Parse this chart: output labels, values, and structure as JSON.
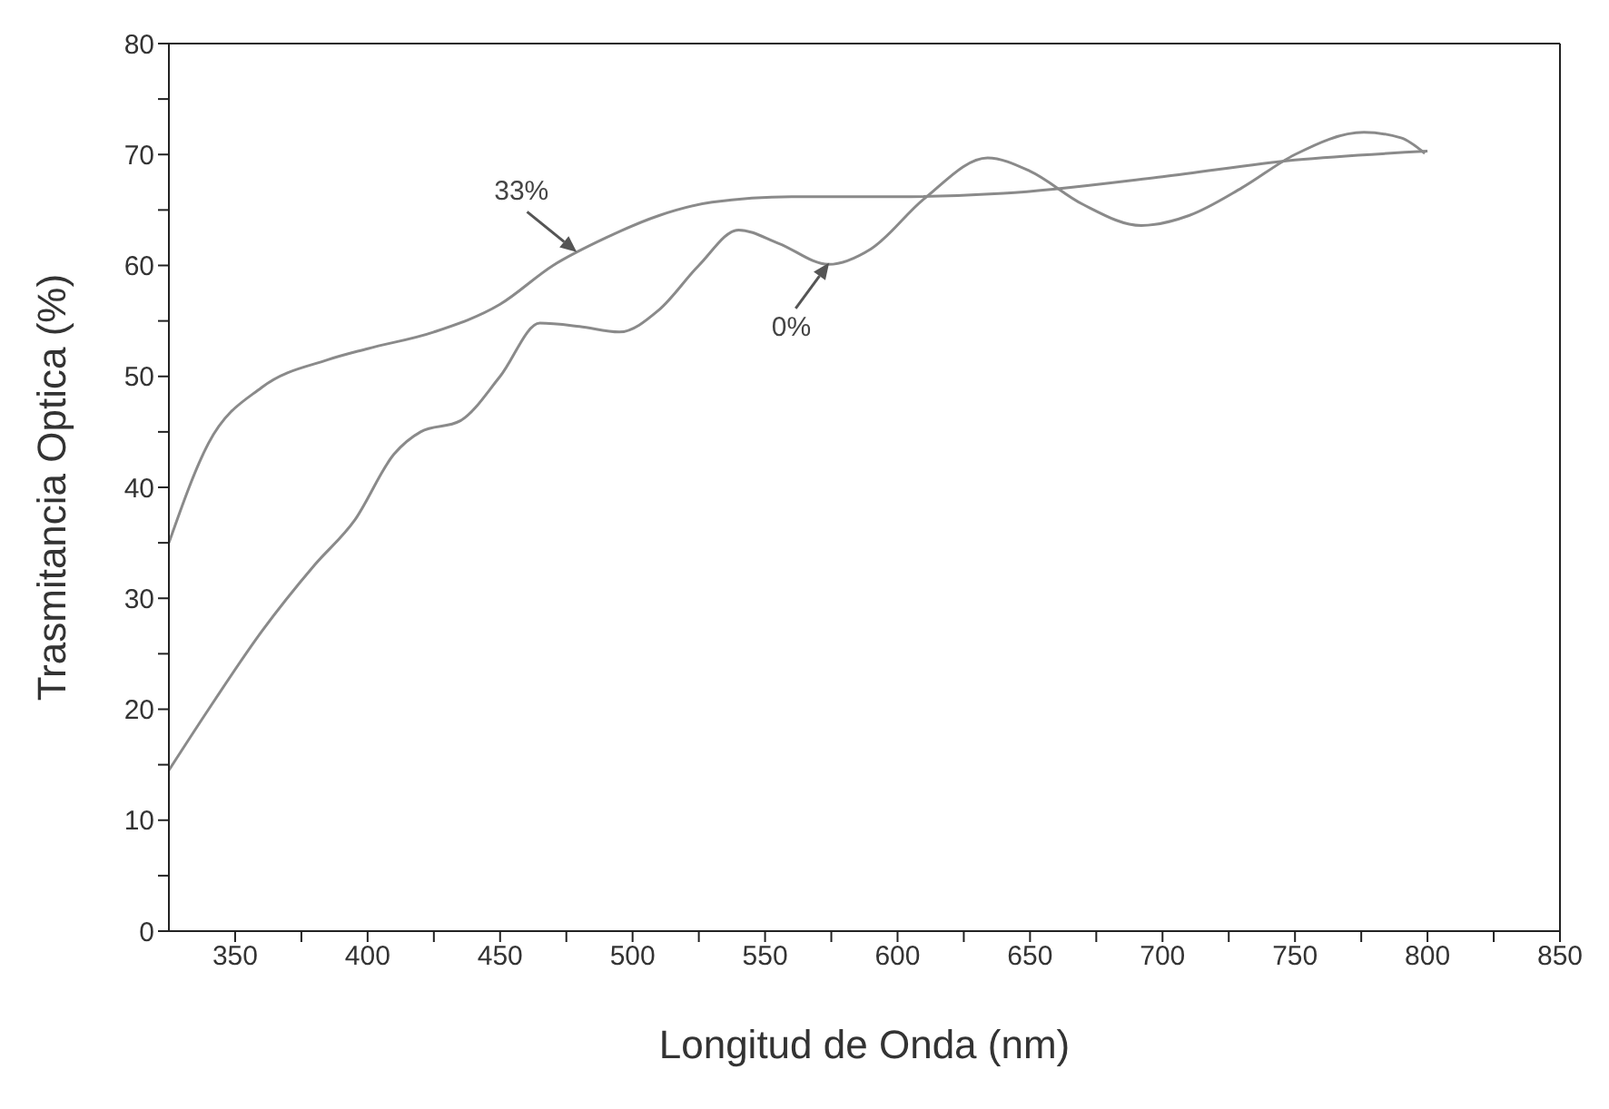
{
  "chart_data": {
    "type": "line",
    "xlabel": "Longitud de Onda (nm)",
    "ylabel": "Trasmitancia Optica (%)",
    "xlim": [
      325,
      850
    ],
    "xticks": [
      350,
      {
        "value": 375,
        "label": null
      },
      400,
      {
        "value": 425,
        "label": null
      },
      450,
      {
        "value": 475,
        "label": null
      },
      500,
      {
        "value": 525,
        "label": null
      },
      550,
      {
        "value": 575,
        "label": null
      },
      600,
      {
        "value": 625,
        "label": null
      },
      650,
      {
        "value": 675,
        "label": null
      },
      700,
      {
        "value": 725,
        "label": null
      },
      750,
      {
        "value": 775,
        "label": null
      },
      800,
      {
        "value": 825,
        "label": null
      },
      850
    ],
    "ylim": [
      0,
      80
    ],
    "yticks": [
      0,
      {
        "value": 5,
        "label": null
      },
      10,
      {
        "value": 15,
        "label": null
      },
      20,
      {
        "value": 25,
        "label": null
      },
      30,
      {
        "value": 35,
        "label": null
      },
      40,
      {
        "value": 45,
        "label": null
      },
      50,
      {
        "value": 55,
        "label": null
      },
      60,
      {
        "value": 65,
        "label": null
      },
      70,
      {
        "value": 75,
        "label": null
      },
      80
    ],
    "marker": "none",
    "line_style": "solid",
    "series": [
      {
        "color": "#8a8a8a",
        "x": [
          325,
          340,
          360,
          385,
          400,
          425,
          450,
          470,
          490,
          510,
          530,
          560,
          600,
          640,
          700,
          750,
          800
        ],
        "values": [
          35,
          44,
          49,
          51.5,
          52.5,
          54,
          56.5,
          60,
          62.5,
          64.5,
          65.7,
          66.2,
          66.2,
          66.5,
          68,
          69.5,
          70.3
        ]
      },
      {
        "color": "#8a8a8a",
        "x": [
          325,
          340,
          360,
          380,
          395,
          410,
          420,
          435,
          450,
          465,
          480,
          495,
          510,
          525,
          540,
          555,
          574,
          590,
          610,
          634,
          650,
          670,
          692,
          710,
          730,
          750,
          776,
          790,
          799
        ],
        "values": [
          14.5,
          20,
          27,
          33,
          37,
          43,
          45,
          46,
          50,
          54.8,
          54.5,
          54,
          56,
          60,
          63.2,
          62,
          60.1,
          61.5,
          66,
          69.7,
          68.5,
          65.5,
          63.6,
          64.5,
          67,
          70,
          72,
          71.5,
          70.1
        ]
      }
    ],
    "annotations": [
      {
        "text": "33%",
        "x": 480,
        "y": 61
      },
      {
        "text": "0%",
        "x": 575,
        "y": 60.5
      }
    ]
  }
}
